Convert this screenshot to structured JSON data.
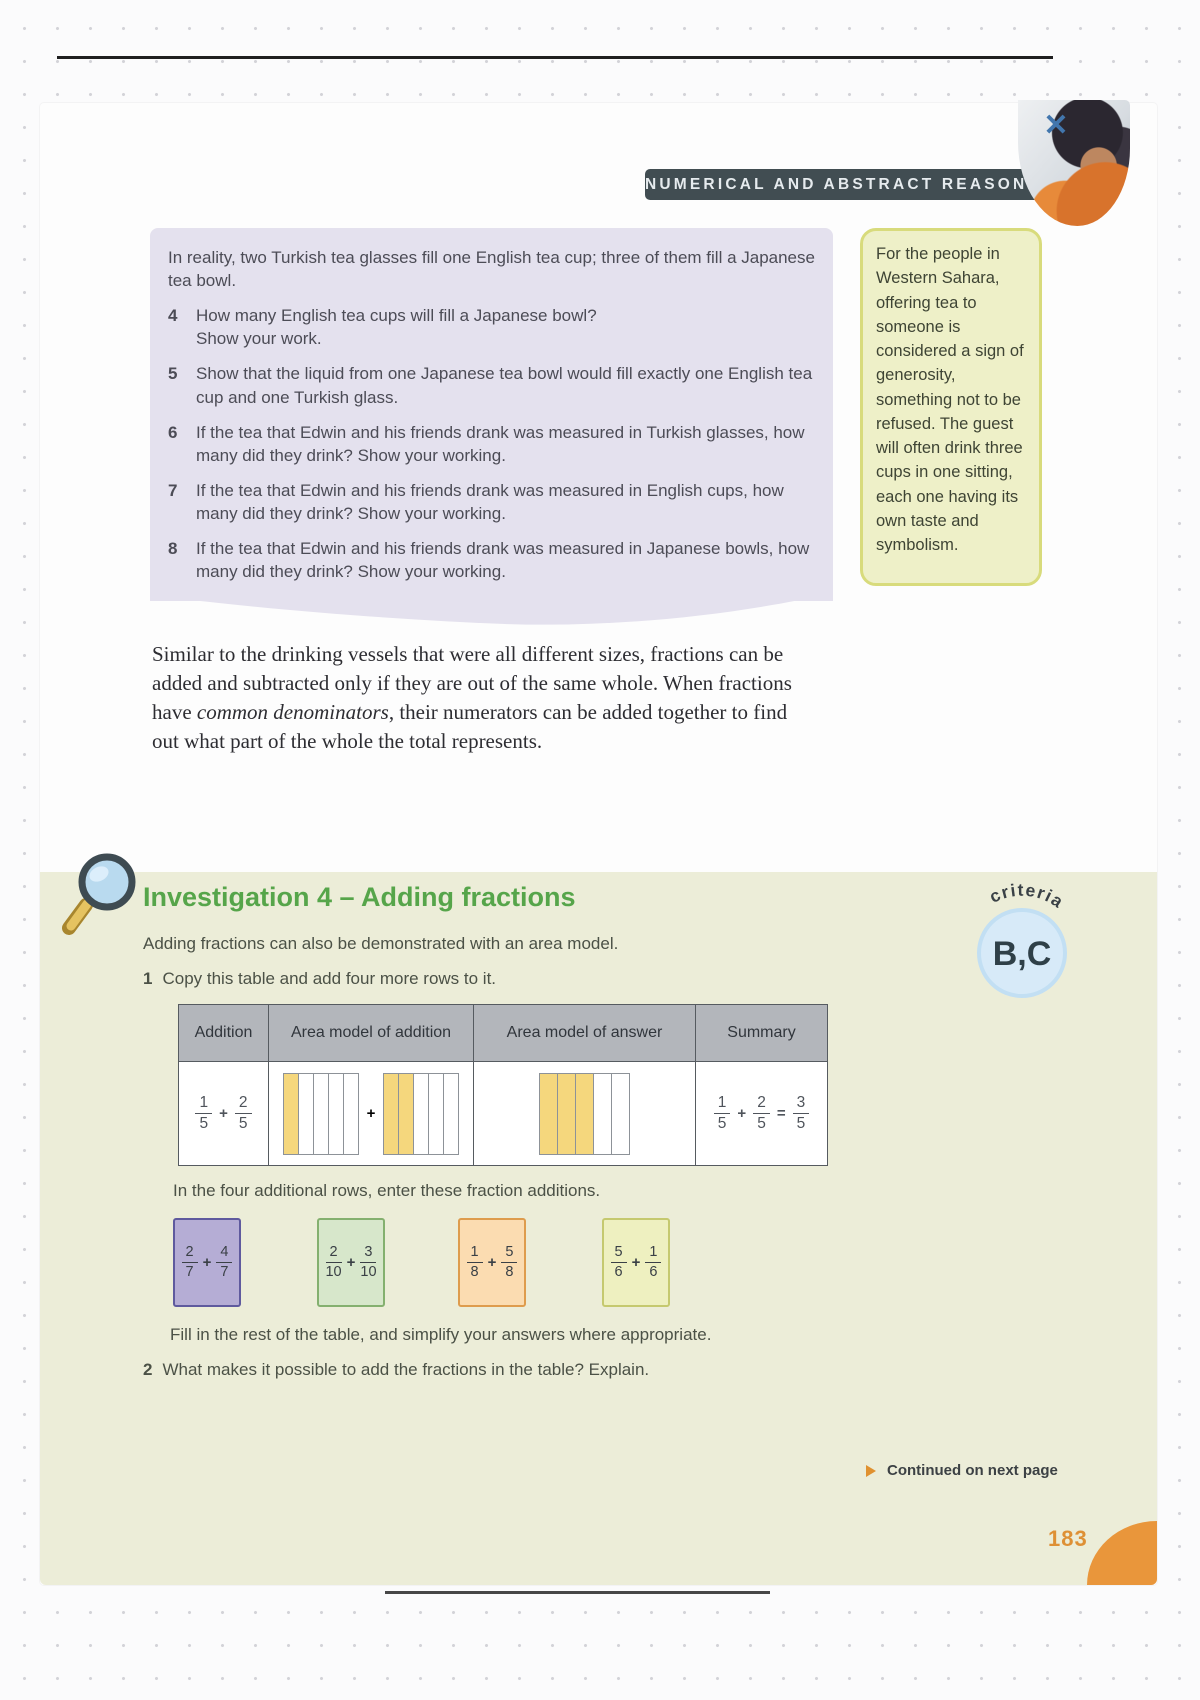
{
  "header": {
    "banner": "NUMERICAL AND ABSTRACT REASONING",
    "close_icon": "✕"
  },
  "tea_box": {
    "intro": "In reality, two Turkish tea glasses fill one English tea cup; three of them fill a Japanese tea bowl.",
    "questions": [
      {
        "num": "4",
        "text": "How many English tea cups will fill a Japanese bowl?\nShow your work."
      },
      {
        "num": "5",
        "text": "Show that the liquid from one Japanese tea bowl would fill exactly one English tea cup and one Turkish glass."
      },
      {
        "num": "6",
        "text": "If the tea that Edwin and his friends drank was measured in Turkish glasses, how many did they drink? Show your working."
      },
      {
        "num": "7",
        "text": "If the tea that Edwin and his friends drank was measured in English cups, how many did they drink? Show your working."
      },
      {
        "num": "8",
        "text": "If the tea that Edwin and his friends drank was measured in Japanese bowls, how many did they drink? Show your working."
      }
    ]
  },
  "fact_box": {
    "text": "For the people in Western Sahara, offering tea to someone is considered a sign of generosity, something not to be refused. The guest will often drink three cups in one sitting, each one having its own taste and symbolism."
  },
  "paragraph": {
    "part1": "Similar to the drinking vessels that were all different sizes, fractions can be added and subtracted only if they are out of the same whole. When fractions have ",
    "italic": "common denominators",
    "part2": ", their numerators can be added together to find out what part of the whole the total represents."
  },
  "investigation": {
    "title": "Investigation 4 – Adding fractions",
    "intro": "Adding fractions can also be demonstrated with an area model.",
    "step1": {
      "num": "1",
      "text": "Copy this table and add four more rows to it."
    },
    "criteria": {
      "arc_label": "criteria",
      "value": "B,C"
    },
    "table": {
      "headers": [
        "Addition",
        "Area model of addition",
        "Area model of answer",
        "Summary"
      ],
      "row": {
        "addition": {
          "f1": {
            "num": "1",
            "den": "5"
          },
          "op": "+",
          "f2": {
            "num": "2",
            "den": "5"
          }
        },
        "area_model_addition": {
          "operator": "+",
          "models": [
            {
              "cells": 5,
              "shaded": 1
            },
            {
              "cells": 5,
              "shaded": 2
            }
          ]
        },
        "area_model_answer": {
          "cells": 5,
          "shaded": 3
        },
        "summary": {
          "f1": {
            "num": "1",
            "den": "5"
          },
          "op": "+",
          "f2": {
            "num": "2",
            "den": "5"
          },
          "eq": "=",
          "f3": {
            "num": "3",
            "den": "5"
          }
        }
      }
    },
    "additional_intro": "In the four additional rows, enter these fraction additions.",
    "fraction_cards": [
      {
        "f1": {
          "num": "2",
          "den": "7"
        },
        "op": "+",
        "f2": {
          "num": "4",
          "den": "7"
        },
        "bg": "#b5add5",
        "border": "#5f5a9e"
      },
      {
        "f1": {
          "num": "2",
          "den": "10"
        },
        "op": "+",
        "f2": {
          "num": "3",
          "den": "10"
        },
        "bg": "#d7e7cb",
        "border": "#84b06f"
      },
      {
        "f1": {
          "num": "1",
          "den": "8"
        },
        "op": "+",
        "f2": {
          "num": "5",
          "den": "8"
        },
        "bg": "#fbdcb1",
        "border": "#de9c4d"
      },
      {
        "f1": {
          "num": "5",
          "den": "6"
        },
        "op": "+",
        "f2": {
          "num": "1",
          "den": "6"
        },
        "bg": "#eef0c0",
        "border": "#c5c96f"
      }
    ],
    "fill_text": "Fill in the rest of the table, and simplify your answers where appropriate.",
    "step2": {
      "num": "2",
      "text": "What makes it possible to add the fractions in the table? Explain."
    }
  },
  "footer": {
    "continued": "Continued on next page",
    "page_number": "183"
  },
  "colors": {
    "banner_bg": "#414d52",
    "panel_green": "#ecedd8",
    "tea_box_purple": "#e4e1ee",
    "fact_box_bg": "#eef0c8",
    "fact_box_border": "#d8db7c",
    "title_green": "#56a54a",
    "table_header_bg": "#b3b6bb",
    "shade_yellow": "#f5d77d",
    "accent_orange": "#e0912f"
  }
}
